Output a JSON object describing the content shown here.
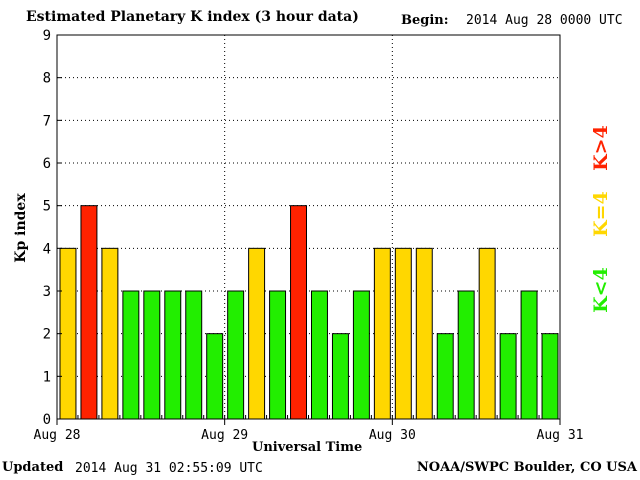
{
  "header": {
    "title": "Estimated Planetary K index (3 hour data)",
    "begin_label": "Begin:",
    "begin_value": "2014 Aug 28 0000 UTC"
  },
  "footer": {
    "updated_label": "Updated",
    "updated_value": "2014 Aug 31 02:55:09 UTC",
    "credit": "NOAA/SWPC Boulder, CO USA"
  },
  "legend": {
    "high": "K>4",
    "equal": "K=4",
    "low": "K<4"
  },
  "colors": {
    "low": "#22ee00",
    "equal": "#ffd700",
    "high": "#ff2200"
  },
  "chart_data": {
    "type": "bar",
    "title": "Estimated Planetary K index (3 hour data)",
    "xlabel": "Universal Time",
    "ylabel": "Kp index",
    "ylim": [
      0,
      9
    ],
    "yticks": [
      0,
      1,
      2,
      3,
      4,
      5,
      6,
      7,
      8,
      9
    ],
    "xticks": [
      "Aug 28",
      "Aug 29",
      "Aug 30",
      "Aug 31"
    ],
    "grid": true,
    "interval_hours": 3,
    "values": [
      4,
      5,
      4,
      3,
      3,
      3,
      3,
      2,
      3,
      4,
      3,
      5,
      3,
      2,
      3,
      4,
      4,
      4,
      2,
      3,
      4,
      2,
      3,
      2
    ]
  }
}
